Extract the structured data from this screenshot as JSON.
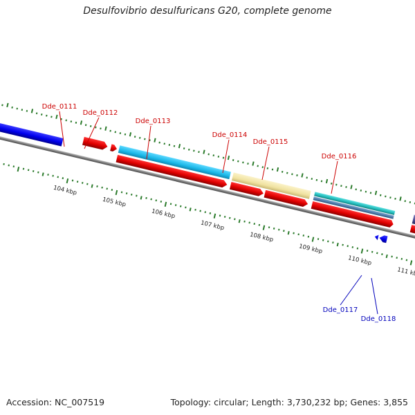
{
  "title": "Desulfovibrio desulfuricans G20, complete genome",
  "footer": {
    "accession": "Accession: NC_007519",
    "summary": "Topology: circular; Length: 3,730,232 bp; Genes: 3,855"
  },
  "colors": {
    "forward_cds": "#e00000",
    "forward_cds_dark": "#900000",
    "reverse_cds": "#0000ee",
    "gene_label_top": "#cc0000",
    "gene_label_bottom": "#0000bb",
    "backbone": "#808080",
    "tick": "#2a7a2a",
    "feature_cyan": "#1ab8e8",
    "feature_pale_yellow": "#f0e2a0",
    "feature_teal": "#20b8b8",
    "feature_steel_blue": "#4a78a8",
    "feature_indigo": "#4a4a90"
  },
  "scale_labels": [
    "104 kbp",
    "105 kbp",
    "106 kbp",
    "107 kbp",
    "108 kbp",
    "109 kbp",
    "110 kbp",
    "111 kbp"
  ],
  "gene_labels": [
    {
      "id": "Dde_0111",
      "strand": "forward"
    },
    {
      "id": "Dde_0112",
      "strand": "forward"
    },
    {
      "id": "Dde_0113",
      "strand": "forward"
    },
    {
      "id": "Dde_0114",
      "strand": "forward"
    },
    {
      "id": "Dde_0115",
      "strand": "forward"
    },
    {
      "id": "Dde_0116",
      "strand": "forward"
    },
    {
      "id": "Dde_0117",
      "strand": "reverse"
    },
    {
      "id": "Dde_0118",
      "strand": "reverse"
    }
  ]
}
